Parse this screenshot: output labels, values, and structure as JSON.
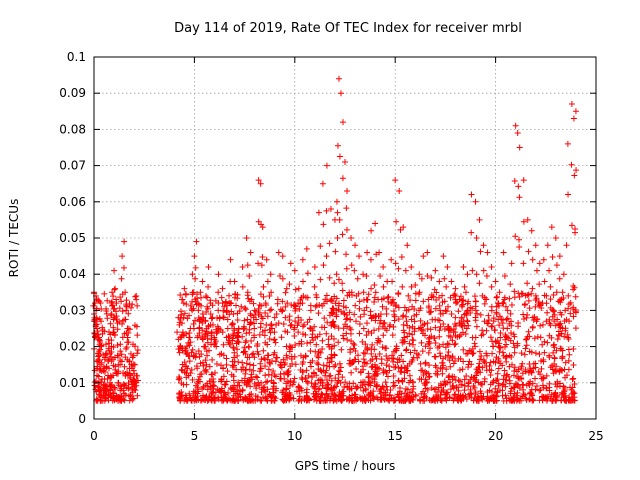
{
  "chart_data": {
    "type": "scatter",
    "title": "Day 114 of 2019, Rate Of TEC Index for receiver mrbl",
    "xlabel": "GPS time / hours",
    "ylabel": "ROTI / TECUs",
    "xlim": [
      0,
      25
    ],
    "ylim": [
      0,
      0.1
    ],
    "xticks": [
      0,
      5,
      10,
      15,
      20,
      25
    ],
    "xtick_labels": [
      "0",
      "5",
      "10",
      "15",
      "20",
      "25"
    ],
    "yticks": [
      0,
      0.01,
      0.02,
      0.03,
      0.04,
      0.05,
      0.06,
      0.07,
      0.08,
      0.09,
      0.1
    ],
    "ytick_labels": [
      "0",
      "0.01",
      "0.02",
      "0.03",
      "0.04",
      "0.05",
      "0.06",
      "0.07",
      "0.08",
      "0.09",
      "0.1"
    ],
    "grid": true,
    "marker": "+",
    "color": "#ff0000",
    "series": [
      {
        "x": [
          0.0,
          0.05,
          0.1,
          0.15,
          0.2,
          0.25,
          0.3,
          0.35,
          0.4,
          0.5,
          0.6,
          0.7,
          0.8,
          0.9,
          1.0,
          1.05,
          1.1,
          1.2,
          1.3,
          1.4,
          1.5,
          1.55,
          1.6,
          1.7,
          1.8,
          1.9,
          2.0,
          4.2,
          4.3,
          4.4,
          4.5,
          4.6,
          4.7,
          4.8,
          4.9,
          5.0,
          5.1,
          5.2,
          5.3,
          5.4,
          5.5,
          5.6,
          5.7,
          5.8,
          5.9,
          6.0,
          6.2,
          6.4,
          6.6,
          6.8,
          7.0,
          7.2,
          7.4,
          7.6,
          7.8,
          8.0,
          8.2,
          8.3,
          8.4,
          8.6,
          8.8,
          9.0,
          9.2,
          9.4,
          9.6,
          9.8,
          10.0,
          10.2,
          10.4,
          10.6,
          10.8,
          11.0,
          11.2,
          11.4,
          11.6,
          11.8,
          12.0,
          12.1,
          12.2,
          12.3,
          12.4,
          12.5,
          12.6,
          12.8,
          13.0,
          13.2,
          13.4,
          13.6,
          13.8,
          14.0,
          14.2,
          14.4,
          14.6,
          14.8,
          15.0,
          15.2,
          15.4,
          15.6,
          15.8,
          16.0,
          16.2,
          16.4,
          16.6,
          16.8,
          17.0,
          17.2,
          17.4,
          17.6,
          17.8,
          18.0,
          18.2,
          18.4,
          18.6,
          18.8,
          19.0,
          19.2,
          19.4,
          19.6,
          19.8,
          20.0,
          20.2,
          20.4,
          20.6,
          20.8,
          21.0,
          21.1,
          21.2,
          21.4,
          21.6,
          21.8,
          22.0,
          22.2,
          22.4,
          22.6,
          22.8,
          23.0,
          23.2,
          23.4,
          23.6,
          23.8,
          23.9,
          24.0
        ],
        "y": [
          0.035,
          0.032,
          0.03,
          0.012,
          0.009,
          0.022,
          0.015,
          0.027,
          0.011,
          0.008,
          0.006,
          0.012,
          0.018,
          0.035,
          0.041,
          0.036,
          0.033,
          0.01,
          0.015,
          0.045,
          0.049,
          0.035,
          0.03,
          0.025,
          0.012,
          0.008,
          0.01,
          0.028,
          0.02,
          0.033,
          0.036,
          0.018,
          0.012,
          0.025,
          0.04,
          0.045,
          0.049,
          0.03,
          0.035,
          0.038,
          0.02,
          0.015,
          0.042,
          0.032,
          0.028,
          0.022,
          0.04,
          0.036,
          0.03,
          0.044,
          0.038,
          0.025,
          0.042,
          0.05,
          0.046,
          0.03,
          0.066,
          0.065,
          0.053,
          0.044,
          0.04,
          0.028,
          0.046,
          0.045,
          0.036,
          0.043,
          0.041,
          0.036,
          0.044,
          0.047,
          0.03,
          0.042,
          0.057,
          0.065,
          0.07,
          0.058,
          0.055,
          0.06,
          0.094,
          0.09,
          0.082,
          0.071,
          0.063,
          0.05,
          0.048,
          0.045,
          0.04,
          0.046,
          0.052,
          0.054,
          0.046,
          0.042,
          0.038,
          0.044,
          0.066,
          0.063,
          0.053,
          0.048,
          0.042,
          0.037,
          0.04,
          0.045,
          0.046,
          0.039,
          0.041,
          0.038,
          0.045,
          0.042,
          0.038,
          0.036,
          0.033,
          0.042,
          0.04,
          0.062,
          0.06,
          0.055,
          0.048,
          0.046,
          0.042,
          0.038,
          0.035,
          0.046,
          0.03,
          0.043,
          0.081,
          0.079,
          0.075,
          0.066,
          0.055,
          0.052,
          0.048,
          0.043,
          0.044,
          0.048,
          0.053,
          0.05,
          0.045,
          0.04,
          0.076,
          0.087,
          0.083,
          0.085
        ],
        "noise_band": "dense points between 0.005 and 0.035 across 0-2 h and 4.2-24 h; gap between about 2.2 and 4.2 h"
      }
    ]
  }
}
